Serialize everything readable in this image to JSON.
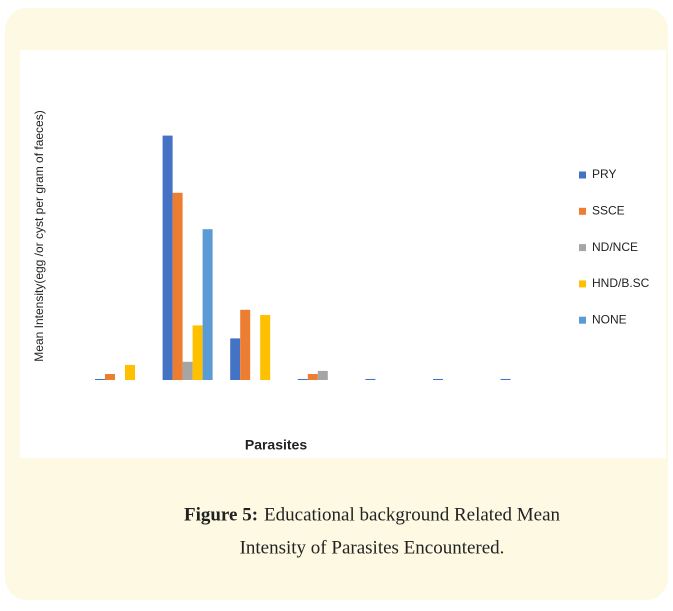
{
  "chart_data": {
    "type": "bar",
    "y_label": "Mean Intensity(egg /or cyst per gram of faeces)",
    "x_label": "Parasites",
    "categories": [
      null,
      null,
      null,
      null,
      null,
      null,
      null
    ],
    "series": [
      {
        "name": "PRY",
        "color": "#4472c4",
        "values": [
          0.4,
          94,
          16,
          0.4,
          0.4,
          0.4,
          0.4
        ]
      },
      {
        "name": "SSCE",
        "color": "#ed7d31",
        "values": [
          2.3,
          72,
          27,
          2.3,
          0,
          0,
          0
        ]
      },
      {
        "name": "ND/NCE",
        "color": "#a5a5a5",
        "values": [
          0,
          7,
          0,
          3.5,
          0,
          0,
          0
        ]
      },
      {
        "name": "HND/B.SC",
        "color": "#ffc000",
        "values": [
          5.8,
          21,
          25,
          0,
          0,
          0,
          0
        ]
      },
      {
        "name": "NONE",
        "color": "#5b9bd5",
        "values": [
          0,
          58,
          0,
          0,
          0,
          0,
          0
        ]
      }
    ],
    "ylim": [
      0,
      100
    ],
    "legend": "right"
  },
  "caption": {
    "label": "Figure 5:",
    "lines": [
      "Educational background Related Mean",
      "Intensity of Parasites Encountered."
    ]
  }
}
